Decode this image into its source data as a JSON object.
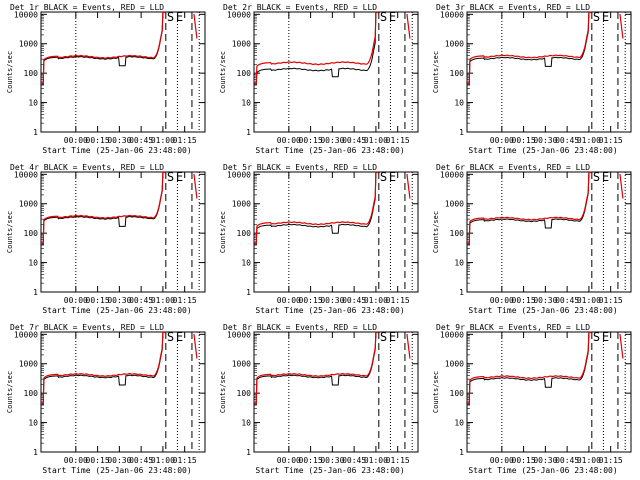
{
  "figure": {
    "xlabel": "Start Time (25-Jan-06 23:48:00)",
    "ylabel": "Counts/sec",
    "series_names": [
      "Events",
      "LLD"
    ],
    "series_colors": {
      "Events": "#000000",
      "LLD": "#e00000"
    },
    "annotation": "S",
    "annotation2": "E"
  },
  "chart_data": [
    {
      "type": "line",
      "title": "Det 1r BLACK = Events, RED = LLD",
      "events_level": 350,
      "lld_level": 380,
      "dip_depth": 180
    },
    {
      "type": "line",
      "title": "Det 2r BLACK = Events, RED = LLD",
      "events_level": 140,
      "lld_level": 230,
      "dip_depth": 75
    },
    {
      "type": "line",
      "title": "Det 3r BLACK = Events, RED = LLD",
      "events_level": 330,
      "lld_level": 390,
      "dip_depth": 170
    },
    {
      "type": "line",
      "title": "Det 4r BLACK = Events, RED = LLD",
      "events_level": 350,
      "lld_level": 380,
      "dip_depth": 170
    },
    {
      "type": "line",
      "title": "Det 5r BLACK = Events, RED = LLD",
      "events_level": 190,
      "lld_level": 230,
      "dip_depth": 100
    },
    {
      "type": "line",
      "title": "Det 6r BLACK = Events, RED = LLD",
      "events_level": 290,
      "lld_level": 330,
      "dip_depth": 150
    },
    {
      "type": "line",
      "title": "Det 7r BLACK = Events, RED = LLD",
      "events_level": 390,
      "lld_level": 440,
      "dip_depth": 190
    },
    {
      "type": "line",
      "title": "Det 8r BLACK = Events, RED = LLD",
      "events_level": 390,
      "lld_level": 440,
      "dip_depth": 190
    },
    {
      "type": "line",
      "title": "Det 9r BLACK = Events, RED = LLD",
      "events_level": 320,
      "lld_level": 370,
      "dip_depth": 160
    }
  ],
  "axes": {
    "x_ticks": [
      "00:00",
      "00:15",
      "00:30",
      "00:45",
      "01:00",
      "01:15"
    ],
    "x_tick_values": [
      12,
      27,
      42,
      57,
      72,
      87
    ],
    "x_range": [
      -12,
      101
    ],
    "y_ticks": [
      "1",
      "10",
      "100",
      "1000",
      "10000"
    ],
    "y_tick_values": [
      1,
      10,
      100,
      1000,
      10000
    ],
    "y_range": [
      1,
      12000
    ],
    "y_scale": "log",
    "dotted_lines_x": [
      12,
      82,
      97
    ],
    "dashed_lines_x": [
      74,
      92
    ]
  }
}
